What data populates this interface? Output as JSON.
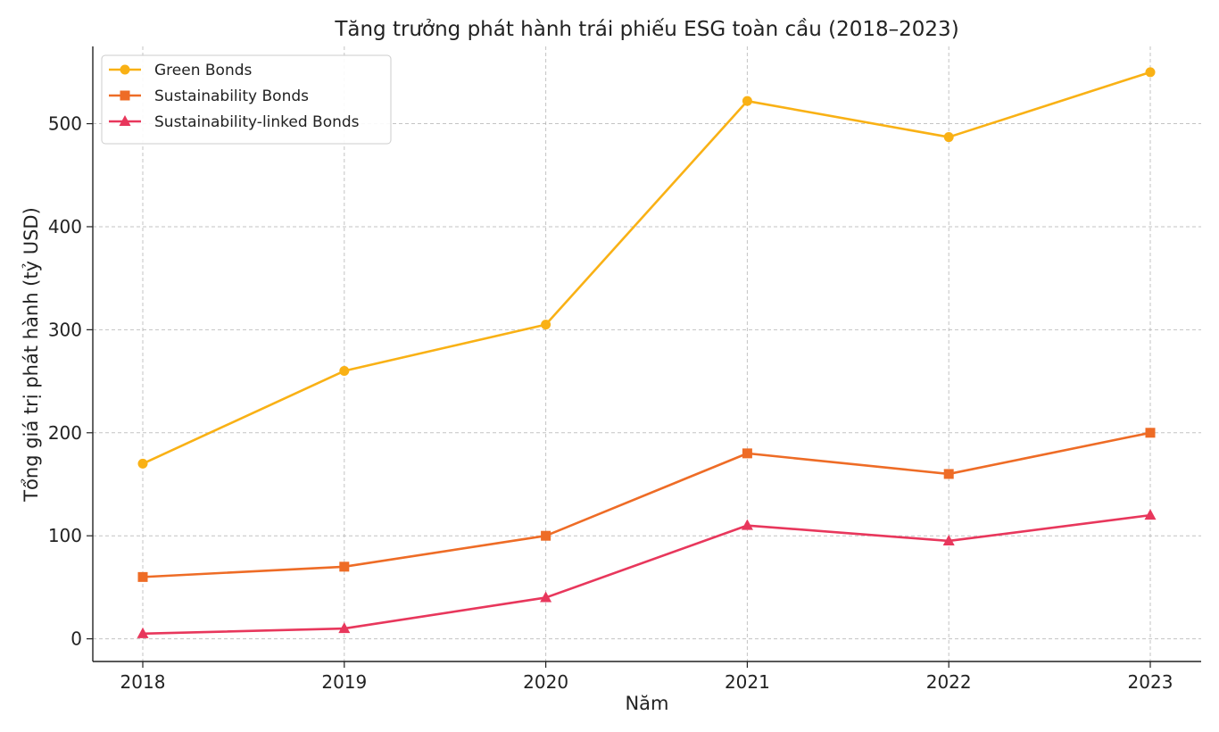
{
  "chart_data": {
    "type": "line",
    "title": "Tăng trưởng phát hành trái phiếu ESG toàn cầu (2018–2023)",
    "xlabel": "Năm",
    "ylabel": "Tổng giá trị phát hành (tỷ USD)",
    "categories": [
      "2018",
      "2019",
      "2020",
      "2021",
      "2022",
      "2023"
    ],
    "ylim": [
      -22,
      575
    ],
    "yticks": [
      "0",
      "100",
      "200",
      "300",
      "400",
      "500"
    ],
    "grid": true,
    "legend_position": "top-left",
    "series": [
      {
        "name": "Green Bonds",
        "color": "#F9B115",
        "marker": "circle",
        "values": [
          170,
          260,
          305,
          522,
          487,
          550
        ]
      },
      {
        "name": "Sustainability Bonds",
        "color": "#EE6C26",
        "marker": "square",
        "values": [
          60,
          70,
          100,
          180,
          160,
          200
        ]
      },
      {
        "name": "Sustainability-linked Bonds",
        "color": "#E8375C",
        "marker": "triangle",
        "values": [
          5,
          10,
          40,
          110,
          95,
          120
        ]
      }
    ]
  }
}
